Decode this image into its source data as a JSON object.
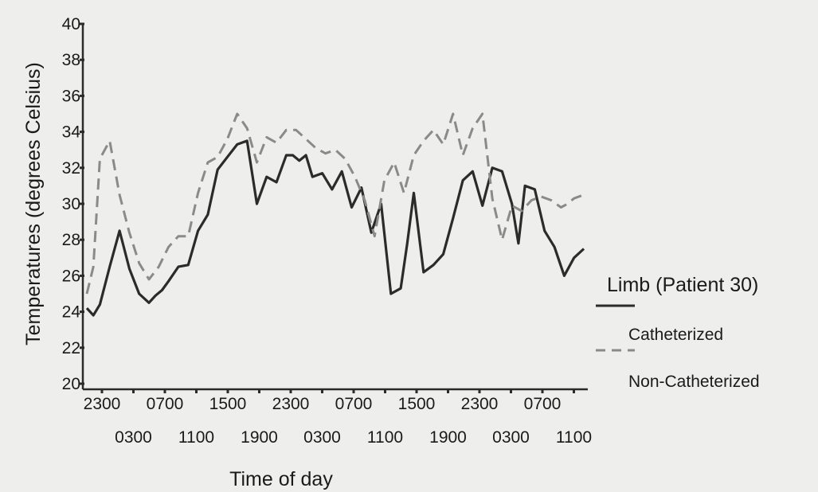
{
  "chart_data": {
    "type": "line",
    "ylabel": "Temperatures (degrees Celsius)",
    "xlabel": "Time of day",
    "ylim": [
      20,
      40
    ],
    "y_ticks": [
      20,
      22,
      24,
      26,
      28,
      30,
      32,
      34,
      36,
      38,
      40
    ],
    "x_tick_labels_top": [
      "2300",
      "0700",
      "1500",
      "2300",
      "0700",
      "1500",
      "2300",
      "0700"
    ],
    "x_tick_labels_bottom": [
      "0300",
      "1100",
      "1900",
      "0300",
      "1100",
      "1900",
      "0300",
      "1100"
    ],
    "grid": false,
    "legend": {
      "title": "Limb (Patient 30)",
      "placement": "right",
      "entries": [
        "Catheterized",
        "Non-Catheterized"
      ]
    },
    "colors": {
      "catheterized": "#2b2b2b",
      "non_catheterized": "#8a8a8a"
    },
    "x_range": [
      0,
      152
    ],
    "series": [
      {
        "name": "Catheterized",
        "style": "solid",
        "x": [
          0,
          2,
          4,
          7,
          10,
          13,
          16,
          19,
          21,
          23,
          25,
          28,
          31,
          34,
          37,
          40,
          43,
          46,
          49,
          52,
          55,
          58,
          61,
          63,
          65,
          67,
          69,
          72,
          75,
          78,
          81,
          84,
          87,
          90,
          93,
          96,
          98,
          100,
          103,
          106,
          109,
          112,
          115,
          118,
          121,
          124,
          127,
          130,
          132,
          134,
          137,
          140,
          143,
          146,
          149,
          152
        ],
        "y": [
          24.2,
          23.8,
          24.4,
          26.5,
          28.5,
          26.4,
          25.0,
          24.5,
          24.9,
          25.2,
          25.7,
          26.5,
          26.6,
          28.5,
          29.4,
          31.9,
          32.6,
          33.3,
          33.5,
          30.0,
          31.5,
          31.2,
          32.7,
          32.7,
          32.4,
          32.7,
          31.5,
          31.7,
          30.8,
          31.8,
          29.8,
          30.9,
          28.4,
          30.0,
          25.0,
          25.3,
          27.8,
          30.6,
          26.2,
          26.6,
          27.2,
          29.2,
          31.3,
          31.8,
          29.9,
          32.0,
          31.8,
          30.0,
          27.8,
          31.0,
          30.8,
          28.5,
          27.6,
          26.0,
          27.0,
          27.5
        ]
      },
      {
        "name": "Non-Catheterized",
        "style": "dashed",
        "x": [
          0,
          2,
          4,
          7,
          10,
          13,
          16,
          19,
          22,
          25,
          28,
          31,
          34,
          37,
          40,
          43,
          46,
          49,
          52,
          55,
          58,
          61,
          64,
          67,
          70,
          73,
          76,
          79,
          82,
          85,
          88,
          91,
          94,
          97,
          100,
          103,
          106,
          109,
          112,
          115,
          118,
          121,
          124,
          127,
          130,
          133,
          136,
          139,
          142,
          145,
          147,
          149,
          152
        ],
        "y": [
          25.0,
          26.5,
          32.5,
          33.5,
          30.5,
          28.4,
          26.7,
          25.8,
          26.5,
          27.6,
          28.2,
          28.2,
          30.6,
          32.3,
          32.6,
          33.6,
          35.0,
          34.2,
          32.3,
          33.7,
          33.4,
          34.1,
          34.1,
          33.6,
          33.1,
          32.8,
          33.0,
          32.5,
          31.5,
          30.2,
          28.2,
          31.3,
          32.3,
          30.6,
          32.7,
          33.5,
          34.1,
          33.3,
          35.0,
          32.7,
          34.2,
          35.0,
          30.3,
          28.0,
          29.9,
          29.6,
          30.2,
          30.4,
          30.2,
          29.8,
          30.0,
          30.3,
          30.5
        ]
      }
    ]
  }
}
